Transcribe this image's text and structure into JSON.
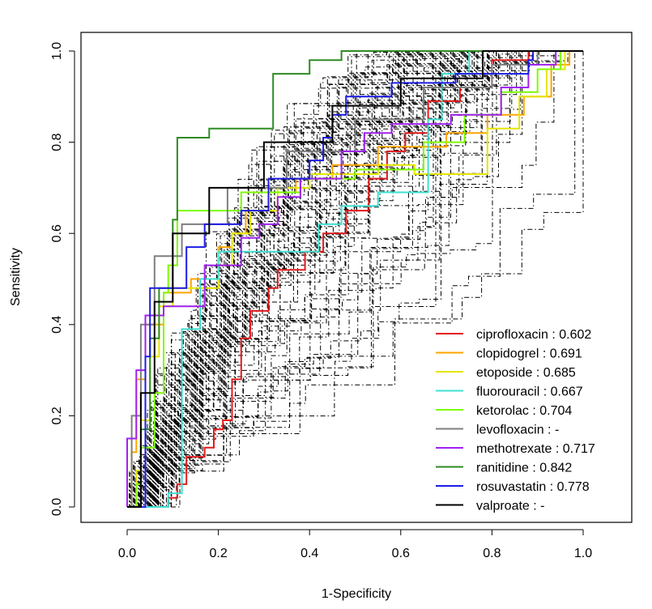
{
  "chart_data": {
    "type": "line",
    "subtype": "roc-curves",
    "title": "",
    "xlabel": "1-Specificity",
    "ylabel": "Sensitivity",
    "xlim": [
      0.0,
      1.0
    ],
    "ylim": [
      0.0,
      1.0
    ],
    "x_ticks": [
      "0.0",
      "0.2",
      "0.4",
      "0.6",
      "0.8",
      "1.0"
    ],
    "y_ticks": [
      "0.0",
      "0.2",
      "0.4",
      "0.6",
      "0.8",
      "1.0"
    ],
    "grid": false,
    "legend_position": "bottom-right",
    "background_curves": {
      "description": "many black dash-dot ROC curves",
      "color": "#000000",
      "count": 70,
      "seed": 17
    },
    "series": [
      {
        "name": "ciprofloxacin",
        "auc": "0.602",
        "legend": "ciprofloxacin : 0.602",
        "color": "#e41a1c",
        "points": [
          [
            0,
            0
          ],
          [
            0.09,
            0
          ],
          [
            0.09,
            0.02
          ],
          [
            0.11,
            0.02
          ],
          [
            0.11,
            0.05
          ],
          [
            0.13,
            0.05
          ],
          [
            0.13,
            0.11
          ],
          [
            0.17,
            0.11
          ],
          [
            0.17,
            0.13
          ],
          [
            0.19,
            0.13
          ],
          [
            0.19,
            0.17
          ],
          [
            0.21,
            0.17
          ],
          [
            0.21,
            0.19
          ],
          [
            0.23,
            0.19
          ],
          [
            0.23,
            0.28
          ],
          [
            0.25,
            0.28
          ],
          [
            0.25,
            0.37
          ],
          [
            0.27,
            0.37
          ],
          [
            0.27,
            0.43
          ],
          [
            0.31,
            0.43
          ],
          [
            0.31,
            0.48
          ],
          [
            0.33,
            0.48
          ],
          [
            0.33,
            0.52
          ],
          [
            0.39,
            0.52
          ],
          [
            0.39,
            0.56
          ],
          [
            0.43,
            0.56
          ],
          [
            0.43,
            0.6
          ],
          [
            0.48,
            0.6
          ],
          [
            0.48,
            0.65
          ],
          [
            0.53,
            0.65
          ],
          [
            0.53,
            0.72
          ],
          [
            0.57,
            0.72
          ],
          [
            0.57,
            0.78
          ],
          [
            0.61,
            0.78
          ],
          [
            0.61,
            0.82
          ],
          [
            0.66,
            0.82
          ],
          [
            0.66,
            0.89
          ],
          [
            0.73,
            0.89
          ],
          [
            0.73,
            0.92
          ],
          [
            0.8,
            0.92
          ],
          [
            0.8,
            0.98
          ],
          [
            0.88,
            0.98
          ],
          [
            0.88,
            1.0
          ],
          [
            1.0,
            1.0
          ]
        ]
      },
      {
        "name": "clopidogrel",
        "auc": "0.691",
        "legend": "clopidogrel : 0.691",
        "color": "#ffa500",
        "points": [
          [
            0,
            0
          ],
          [
            0.01,
            0
          ],
          [
            0.01,
            0.12
          ],
          [
            0.02,
            0.12
          ],
          [
            0.02,
            0.28
          ],
          [
            0.04,
            0.28
          ],
          [
            0.04,
            0.4
          ],
          [
            0.08,
            0.4
          ],
          [
            0.08,
            0.47
          ],
          [
            0.14,
            0.47
          ],
          [
            0.14,
            0.5
          ],
          [
            0.2,
            0.5
          ],
          [
            0.2,
            0.57
          ],
          [
            0.23,
            0.57
          ],
          [
            0.23,
            0.6
          ],
          [
            0.26,
            0.6
          ],
          [
            0.26,
            0.65
          ],
          [
            0.31,
            0.65
          ],
          [
            0.31,
            0.69
          ],
          [
            0.37,
            0.69
          ],
          [
            0.37,
            0.72
          ],
          [
            0.45,
            0.72
          ],
          [
            0.45,
            0.75
          ],
          [
            0.55,
            0.75
          ],
          [
            0.55,
            0.79
          ],
          [
            0.7,
            0.79
          ],
          [
            0.7,
            0.82
          ],
          [
            0.79,
            0.82
          ],
          [
            0.79,
            0.86
          ],
          [
            0.87,
            0.86
          ],
          [
            0.87,
            0.9
          ],
          [
            0.93,
            0.9
          ],
          [
            0.93,
            0.97
          ],
          [
            0.97,
            0.97
          ],
          [
            0.97,
            1.0
          ],
          [
            1.0,
            1.0
          ]
        ]
      },
      {
        "name": "etoposide",
        "auc": "0.685",
        "legend": "etoposide : 0.685",
        "color": "#e5e500",
        "points": [
          [
            0,
            0
          ],
          [
            0.02,
            0
          ],
          [
            0.02,
            0.08
          ],
          [
            0.03,
            0.08
          ],
          [
            0.03,
            0.19
          ],
          [
            0.05,
            0.19
          ],
          [
            0.05,
            0.33
          ],
          [
            0.07,
            0.33
          ],
          [
            0.07,
            0.44
          ],
          [
            0.1,
            0.44
          ],
          [
            0.1,
            0.48
          ],
          [
            0.2,
            0.48
          ],
          [
            0.2,
            0.53
          ],
          [
            0.23,
            0.53
          ],
          [
            0.23,
            0.6
          ],
          [
            0.27,
            0.6
          ],
          [
            0.27,
            0.65
          ],
          [
            0.33,
            0.65
          ],
          [
            0.33,
            0.7
          ],
          [
            0.4,
            0.7
          ],
          [
            0.4,
            0.73
          ],
          [
            0.55,
            0.73
          ],
          [
            0.55,
            0.75
          ],
          [
            0.63,
            0.75
          ],
          [
            0.63,
            0.73
          ],
          [
            0.79,
            0.73
          ],
          [
            0.79,
            0.83
          ],
          [
            0.86,
            0.83
          ],
          [
            0.86,
            0.9
          ],
          [
            0.92,
            0.9
          ],
          [
            0.92,
            0.96
          ],
          [
            0.96,
            0.96
          ],
          [
            0.96,
            1.0
          ],
          [
            1.0,
            1.0
          ]
        ]
      },
      {
        "name": "fluorouracil",
        "auc": "0.667",
        "legend": "fluorouracil : 0.667",
        "color": "#40e0d0",
        "points": [
          [
            0,
            0
          ],
          [
            0.09,
            0
          ],
          [
            0.09,
            0.03
          ],
          [
            0.12,
            0.03
          ],
          [
            0.12,
            0.39
          ],
          [
            0.16,
            0.39
          ],
          [
            0.16,
            0.5
          ],
          [
            0.2,
            0.5
          ],
          [
            0.2,
            0.56
          ],
          [
            0.42,
            0.56
          ],
          [
            0.42,
            0.62
          ],
          [
            0.47,
            0.62
          ],
          [
            0.47,
            0.66
          ],
          [
            0.55,
            0.66
          ],
          [
            0.55,
            0.69
          ],
          [
            0.66,
            0.69
          ],
          [
            0.66,
            0.85
          ],
          [
            0.69,
            0.85
          ],
          [
            0.69,
            0.95
          ],
          [
            0.75,
            0.95
          ],
          [
            0.75,
            1.0
          ],
          [
            1.0,
            1.0
          ]
        ]
      },
      {
        "name": "ketorolac",
        "auc": "0.704",
        "legend": "ketorolac : 0.704",
        "color": "#7cfc00",
        "points": [
          [
            0,
            0
          ],
          [
            0.02,
            0
          ],
          [
            0.02,
            0.05
          ],
          [
            0.03,
            0.05
          ],
          [
            0.03,
            0.13
          ],
          [
            0.06,
            0.13
          ],
          [
            0.06,
            0.25
          ],
          [
            0.08,
            0.25
          ],
          [
            0.08,
            0.47
          ],
          [
            0.09,
            0.47
          ],
          [
            0.09,
            0.53
          ],
          [
            0.11,
            0.53
          ],
          [
            0.11,
            0.65
          ],
          [
            0.25,
            0.65
          ],
          [
            0.25,
            0.69
          ],
          [
            0.38,
            0.69
          ],
          [
            0.38,
            0.72
          ],
          [
            0.5,
            0.72
          ],
          [
            0.5,
            0.74
          ],
          [
            0.65,
            0.74
          ],
          [
            0.65,
            0.8
          ],
          [
            0.74,
            0.8
          ],
          [
            0.74,
            0.86
          ],
          [
            0.82,
            0.86
          ],
          [
            0.82,
            0.91
          ],
          [
            0.9,
            0.91
          ],
          [
            0.9,
            0.96
          ],
          [
            0.95,
            0.96
          ],
          [
            0.95,
            1.0
          ],
          [
            1.0,
            1.0
          ]
        ]
      },
      {
        "name": "levofloxacin",
        "auc": "-",
        "legend": "levofloxacin : -",
        "color": "#7f7f7f",
        "points": [
          [
            0,
            0
          ],
          [
            0.01,
            0
          ],
          [
            0.01,
            0.2
          ],
          [
            0.03,
            0.2
          ],
          [
            0.03,
            0.4
          ],
          [
            0.06,
            0.4
          ],
          [
            0.06,
            0.55
          ],
          [
            0.12,
            0.55
          ],
          [
            0.12,
            0.62
          ],
          [
            0.22,
            0.62
          ],
          [
            0.22,
            0.7
          ],
          [
            0.35,
            0.7
          ],
          [
            0.35,
            0.78
          ],
          [
            0.5,
            0.78
          ],
          [
            0.5,
            0.85
          ],
          [
            0.65,
            0.85
          ],
          [
            0.65,
            0.92
          ],
          [
            0.8,
            0.92
          ],
          [
            0.8,
            0.97
          ],
          [
            0.9,
            0.97
          ],
          [
            0.9,
            1.0
          ],
          [
            1.0,
            1.0
          ]
        ]
      },
      {
        "name": "methotrexate",
        "auc": "0.717",
        "legend": "methotrexate : 0.717",
        "color": "#a020f0",
        "points": [
          [
            0,
            0
          ],
          [
            0.0,
            0.07
          ],
          [
            0.0,
            0.15
          ],
          [
            0.02,
            0.15
          ],
          [
            0.02,
            0.3
          ],
          [
            0.04,
            0.3
          ],
          [
            0.04,
            0.42
          ],
          [
            0.08,
            0.42
          ],
          [
            0.08,
            0.44
          ],
          [
            0.17,
            0.44
          ],
          [
            0.17,
            0.53
          ],
          [
            0.25,
            0.53
          ],
          [
            0.25,
            0.59
          ],
          [
            0.29,
            0.59
          ],
          [
            0.29,
            0.62
          ],
          [
            0.33,
            0.62
          ],
          [
            0.33,
            0.68
          ],
          [
            0.38,
            0.68
          ],
          [
            0.38,
            0.72
          ],
          [
            0.47,
            0.72
          ],
          [
            0.47,
            0.78
          ],
          [
            0.52,
            0.78
          ],
          [
            0.52,
            0.82
          ],
          [
            0.58,
            0.82
          ],
          [
            0.58,
            0.84
          ],
          [
            0.71,
            0.84
          ],
          [
            0.71,
            0.86
          ],
          [
            0.82,
            0.86
          ],
          [
            0.82,
            0.92
          ],
          [
            0.88,
            0.92
          ],
          [
            0.88,
            0.97
          ],
          [
            0.94,
            0.97
          ],
          [
            0.94,
            1.0
          ],
          [
            1.0,
            1.0
          ]
        ]
      },
      {
        "name": "ranitidine",
        "auc": "0.842",
        "legend": "ranitidine : 0.842",
        "color": "#2e8b22",
        "points": [
          [
            0,
            0
          ],
          [
            0.03,
            0
          ],
          [
            0.03,
            0.17
          ],
          [
            0.05,
            0.17
          ],
          [
            0.05,
            0.37
          ],
          [
            0.07,
            0.37
          ],
          [
            0.07,
            0.48
          ],
          [
            0.1,
            0.48
          ],
          [
            0.1,
            0.63
          ],
          [
            0.11,
            0.63
          ],
          [
            0.11,
            0.81
          ],
          [
            0.18,
            0.81
          ],
          [
            0.18,
            0.83
          ],
          [
            0.32,
            0.83
          ],
          [
            0.32,
            0.95
          ],
          [
            0.4,
            0.95
          ],
          [
            0.4,
            0.98
          ],
          [
            0.47,
            0.98
          ],
          [
            0.47,
            1.0
          ],
          [
            1.0,
            1.0
          ]
        ]
      },
      {
        "name": "rosuvastatin",
        "auc": "0.778",
        "legend": "rosuvastatin : 0.778",
        "color": "#1c1ce6",
        "points": [
          [
            0,
            0
          ],
          [
            0.04,
            0
          ],
          [
            0.04,
            0.33
          ],
          [
            0.05,
            0.33
          ],
          [
            0.05,
            0.48
          ],
          [
            0.13,
            0.48
          ],
          [
            0.13,
            0.57
          ],
          [
            0.17,
            0.57
          ],
          [
            0.17,
            0.62
          ],
          [
            0.25,
            0.62
          ],
          [
            0.25,
            0.65
          ],
          [
            0.31,
            0.65
          ],
          [
            0.31,
            0.72
          ],
          [
            0.4,
            0.72
          ],
          [
            0.4,
            0.76
          ],
          [
            0.43,
            0.76
          ],
          [
            0.43,
            0.81
          ],
          [
            0.45,
            0.81
          ],
          [
            0.45,
            0.86
          ],
          [
            0.48,
            0.86
          ],
          [
            0.48,
            0.9
          ],
          [
            0.58,
            0.9
          ],
          [
            0.58,
            0.93
          ],
          [
            0.72,
            0.93
          ],
          [
            0.72,
            0.95
          ],
          [
            0.88,
            0.95
          ],
          [
            0.88,
            0.98
          ],
          [
            0.89,
            0.98
          ],
          [
            0.89,
            1.0
          ],
          [
            1.0,
            1.0
          ]
        ]
      },
      {
        "name": "valproate",
        "auc": "-",
        "legend": "valproate : -",
        "color": "#000000",
        "points": [
          [
            0,
            0
          ],
          [
            0.03,
            0
          ],
          [
            0.03,
            0.25
          ],
          [
            0.06,
            0.25
          ],
          [
            0.06,
            0.45
          ],
          [
            0.1,
            0.45
          ],
          [
            0.1,
            0.6
          ],
          [
            0.18,
            0.6
          ],
          [
            0.18,
            0.7
          ],
          [
            0.3,
            0.7
          ],
          [
            0.3,
            0.8
          ],
          [
            0.45,
            0.8
          ],
          [
            0.45,
            0.88
          ],
          [
            0.6,
            0.88
          ],
          [
            0.6,
            0.94
          ],
          [
            0.78,
            0.94
          ],
          [
            0.78,
            1.0
          ],
          [
            1.0,
            1.0
          ]
        ]
      }
    ]
  }
}
